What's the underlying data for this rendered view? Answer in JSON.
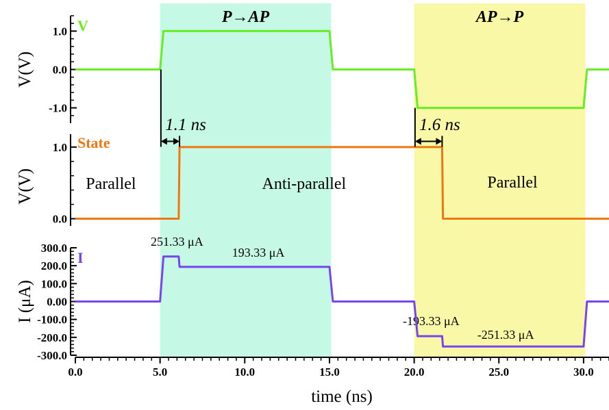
{
  "chart_data": {
    "type": "line",
    "xlabel": "time (ns)",
    "xlim": [
      0,
      31.5
    ],
    "xticks": [
      "0.0",
      "5.0",
      "10.0",
      "15.0",
      "20.0",
      "25.0",
      "30.0"
    ],
    "colors": {
      "voltage": "#66ee22",
      "state": "#ee7711",
      "current": "#7744ee",
      "region_pap": "#c6f8e6",
      "region_app": "#f8f8a6"
    },
    "regions": [
      {
        "name": "P→AP",
        "x": [
          5.0,
          15.1
        ]
      },
      {
        "name": "AP→P",
        "x": [
          20.0,
          30.1
        ]
      }
    ],
    "panels": [
      {
        "series_label": "V",
        "ylabel": "V(V)",
        "ylim": [
          -1.4,
          1.4
        ],
        "yticks": [
          "1.0",
          "0.0",
          "-1.0"
        ],
        "series": [
          {
            "name": "V",
            "x": [
              0,
              5.0,
              5.2,
              15.0,
              15.2,
              20.0,
              20.2,
              30.0,
              30.2,
              31.5
            ],
            "y": [
              0,
              0,
              1.0,
              1.0,
              0,
              0,
              -1.0,
              -1.0,
              0,
              0
            ]
          }
        ]
      },
      {
        "series_label": "State",
        "ylabel": "V(V)",
        "ylim": [
          -0.1,
          1.18
        ],
        "yticks": [
          "1.0",
          "0.0"
        ],
        "series": [
          {
            "name": "State",
            "x": [
              0,
              6.1,
              6.15,
              21.65,
              21.7,
              31.5
            ],
            "y": [
              0,
              0,
              1.0,
              1.0,
              0,
              0
            ]
          }
        ]
      },
      {
        "series_label": "I",
        "ylabel": "I (μA)",
        "ylim": [
          -300,
          300
        ],
        "yticks": [
          "300.0",
          "200.0",
          "100.0",
          "0.00",
          "-100.0",
          "-200.0",
          "-300.0"
        ],
        "series": [
          {
            "name": "I",
            "x": [
              0,
              5.0,
              5.2,
              6.1,
              6.15,
              15.0,
              15.2,
              20.0,
              20.2,
              21.65,
              21.7,
              30.0,
              30.2,
              31.5
            ],
            "y": [
              0,
              0,
              251.33,
              251.33,
              193.33,
              193.33,
              0,
              0,
              -193.33,
              -193.33,
              -251.33,
              -251.33,
              0,
              0
            ]
          }
        ]
      }
    ],
    "annotations": {
      "region_titles": [
        "P→AP",
        "AP→P"
      ],
      "states": [
        "Parallel",
        "Anti-parallel",
        "Parallel"
      ],
      "delays": [
        "1.1 ns",
        "1.6 ns"
      ],
      "current_labels": [
        "251.33 μA",
        "193.33 μA",
        "-193.33 μA",
        "-251.33 μA"
      ]
    }
  }
}
